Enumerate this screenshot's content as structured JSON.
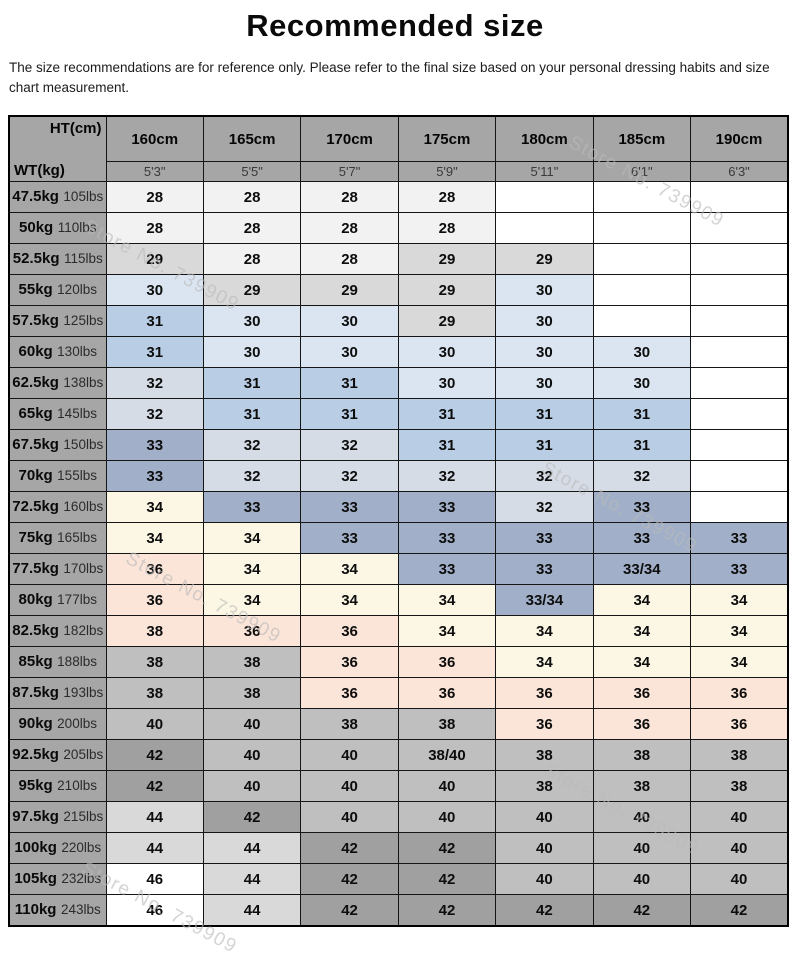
{
  "page": {
    "title": "Recommended size",
    "subtitle": "The size recommendations are for reference only. Please refer to the final size based on your personal dressing habits and size chart measurement."
  },
  "watermark": {
    "text": "Store No. 739909"
  },
  "table": {
    "corner": {
      "top": "HT(cm)",
      "bottom": "WT(kg)"
    },
    "columns": [
      {
        "cm": "160cm",
        "ft": "5'3\""
      },
      {
        "cm": "165cm",
        "ft": "5'5\""
      },
      {
        "cm": "170cm",
        "ft": "5'7\""
      },
      {
        "cm": "175cm",
        "ft": "5'9\""
      },
      {
        "cm": "180cm",
        "ft": "5'11\""
      },
      {
        "cm": "185cm",
        "ft": "6'1\""
      },
      {
        "cm": "190cm",
        "ft": "6'3\""
      }
    ],
    "colors": {
      "w": "#ffffff",
      "g0": "#f2f2f2",
      "g1": "#d9d9d9",
      "b0": "#dbe5f1",
      "b1": "#b9cde5",
      "gb": "#d6dce6",
      "b2": "#a1b0c8",
      "cr": "#fbf7e4",
      "pk": "#fbe5d9",
      "g2": "#bfbfbf",
      "g3": "#a0a0a0",
      "header": "#a6a6a6"
    },
    "rows": [
      {
        "kg": "47.5kg",
        "lbs": "105lbs",
        "cells": [
          {
            "v": "28",
            "c": "g0"
          },
          {
            "v": "28",
            "c": "g0"
          },
          {
            "v": "28",
            "c": "g0"
          },
          {
            "v": "28",
            "c": "g0"
          },
          {
            "v": "",
            "c": "w"
          },
          {
            "v": "",
            "c": "w"
          },
          {
            "v": "",
            "c": "w"
          }
        ]
      },
      {
        "kg": "50kg",
        "lbs": "110lbs",
        "cells": [
          {
            "v": "28",
            "c": "g0"
          },
          {
            "v": "28",
            "c": "g0"
          },
          {
            "v": "28",
            "c": "g0"
          },
          {
            "v": "28",
            "c": "g0"
          },
          {
            "v": "",
            "c": "w"
          },
          {
            "v": "",
            "c": "w"
          },
          {
            "v": "",
            "c": "w"
          }
        ]
      },
      {
        "kg": "52.5kg",
        "lbs": "115lbs",
        "cells": [
          {
            "v": "29",
            "c": "g1"
          },
          {
            "v": "28",
            "c": "g0"
          },
          {
            "v": "28",
            "c": "g0"
          },
          {
            "v": "29",
            "c": "g1"
          },
          {
            "v": "29",
            "c": "g1"
          },
          {
            "v": "",
            "c": "w"
          },
          {
            "v": "",
            "c": "w"
          }
        ]
      },
      {
        "kg": "55kg",
        "lbs": "120lbs",
        "cells": [
          {
            "v": "30",
            "c": "b0"
          },
          {
            "v": "29",
            "c": "g1"
          },
          {
            "v": "29",
            "c": "g1"
          },
          {
            "v": "29",
            "c": "g1"
          },
          {
            "v": "30",
            "c": "b0"
          },
          {
            "v": "",
            "c": "w"
          },
          {
            "v": "",
            "c": "w"
          }
        ]
      },
      {
        "kg": "57.5kg",
        "lbs": "125lbs",
        "cells": [
          {
            "v": "31",
            "c": "b1"
          },
          {
            "v": "30",
            "c": "b0"
          },
          {
            "v": "30",
            "c": "b0"
          },
          {
            "v": "29",
            "c": "g1"
          },
          {
            "v": "30",
            "c": "b0"
          },
          {
            "v": "",
            "c": "w"
          },
          {
            "v": "",
            "c": "w"
          }
        ]
      },
      {
        "kg": "60kg",
        "lbs": "130lbs",
        "cells": [
          {
            "v": "31",
            "c": "b1"
          },
          {
            "v": "30",
            "c": "b0"
          },
          {
            "v": "30",
            "c": "b0"
          },
          {
            "v": "30",
            "c": "b0"
          },
          {
            "v": "30",
            "c": "b0"
          },
          {
            "v": "30",
            "c": "b0"
          },
          {
            "v": "",
            "c": "w"
          }
        ]
      },
      {
        "kg": "62.5kg",
        "lbs": "138lbs",
        "cells": [
          {
            "v": "32",
            "c": "gb"
          },
          {
            "v": "31",
            "c": "b1"
          },
          {
            "v": "31",
            "c": "b1"
          },
          {
            "v": "30",
            "c": "b0"
          },
          {
            "v": "30",
            "c": "b0"
          },
          {
            "v": "30",
            "c": "b0"
          },
          {
            "v": "",
            "c": "w"
          }
        ]
      },
      {
        "kg": "65kg",
        "lbs": "145lbs",
        "cells": [
          {
            "v": "32",
            "c": "gb"
          },
          {
            "v": "31",
            "c": "b1"
          },
          {
            "v": "31",
            "c": "b1"
          },
          {
            "v": "31",
            "c": "b1"
          },
          {
            "v": "31",
            "c": "b1"
          },
          {
            "v": "31",
            "c": "b1"
          },
          {
            "v": "",
            "c": "w"
          }
        ]
      },
      {
        "kg": "67.5kg",
        "lbs": "150lbs",
        "cells": [
          {
            "v": "33",
            "c": "b2"
          },
          {
            "v": "32",
            "c": "gb"
          },
          {
            "v": "32",
            "c": "gb"
          },
          {
            "v": "31",
            "c": "b1"
          },
          {
            "v": "31",
            "c": "b1"
          },
          {
            "v": "31",
            "c": "b1"
          },
          {
            "v": "",
            "c": "w"
          }
        ]
      },
      {
        "kg": "70kg",
        "lbs": "155lbs",
        "cells": [
          {
            "v": "33",
            "c": "b2"
          },
          {
            "v": "32",
            "c": "gb"
          },
          {
            "v": "32",
            "c": "gb"
          },
          {
            "v": "32",
            "c": "gb"
          },
          {
            "v": "32",
            "c": "gb"
          },
          {
            "v": "32",
            "c": "gb"
          },
          {
            "v": "",
            "c": "w"
          }
        ]
      },
      {
        "kg": "72.5kg",
        "lbs": "160lbs",
        "cells": [
          {
            "v": "34",
            "c": "cr"
          },
          {
            "v": "33",
            "c": "b2"
          },
          {
            "v": "33",
            "c": "b2"
          },
          {
            "v": "33",
            "c": "b2"
          },
          {
            "v": "32",
            "c": "gb"
          },
          {
            "v": "33",
            "c": "b2"
          },
          {
            "v": "",
            "c": "w"
          }
        ]
      },
      {
        "kg": "75kg",
        "lbs": "165lbs",
        "cells": [
          {
            "v": "34",
            "c": "cr"
          },
          {
            "v": "34",
            "c": "cr"
          },
          {
            "v": "33",
            "c": "b2"
          },
          {
            "v": "33",
            "c": "b2"
          },
          {
            "v": "33",
            "c": "b2"
          },
          {
            "v": "33",
            "c": "b2"
          },
          {
            "v": "33",
            "c": "b2"
          }
        ]
      },
      {
        "kg": "77.5kg",
        "lbs": "170lbs",
        "cells": [
          {
            "v": "36",
            "c": "pk"
          },
          {
            "v": "34",
            "c": "cr"
          },
          {
            "v": "34",
            "c": "cr"
          },
          {
            "v": "33",
            "c": "b2"
          },
          {
            "v": "33",
            "c": "b2"
          },
          {
            "v": "33/34",
            "c": "b2"
          },
          {
            "v": "33",
            "c": "b2"
          }
        ]
      },
      {
        "kg": "80kg",
        "lbs": "177lbs",
        "cells": [
          {
            "v": "36",
            "c": "pk"
          },
          {
            "v": "34",
            "c": "cr"
          },
          {
            "v": "34",
            "c": "cr"
          },
          {
            "v": "34",
            "c": "cr"
          },
          {
            "v": "33/34",
            "c": "b2"
          },
          {
            "v": "34",
            "c": "cr"
          },
          {
            "v": "34",
            "c": "cr"
          }
        ]
      },
      {
        "kg": "82.5kg",
        "lbs": "182lbs",
        "cells": [
          {
            "v": "38",
            "c": "pk"
          },
          {
            "v": "36",
            "c": "pk"
          },
          {
            "v": "36",
            "c": "pk"
          },
          {
            "v": "34",
            "c": "cr"
          },
          {
            "v": "34",
            "c": "cr"
          },
          {
            "v": "34",
            "c": "cr"
          },
          {
            "v": "34",
            "c": "cr"
          }
        ]
      },
      {
        "kg": "85kg",
        "lbs": "188lbs",
        "cells": [
          {
            "v": "38",
            "c": "g2"
          },
          {
            "v": "38",
            "c": "g2"
          },
          {
            "v": "36",
            "c": "pk"
          },
          {
            "v": "36",
            "c": "pk"
          },
          {
            "v": "34",
            "c": "cr"
          },
          {
            "v": "34",
            "c": "cr"
          },
          {
            "v": "34",
            "c": "cr"
          }
        ]
      },
      {
        "kg": "87.5kg",
        "lbs": "193lbs",
        "cells": [
          {
            "v": "38",
            "c": "g2"
          },
          {
            "v": "38",
            "c": "g2"
          },
          {
            "v": "36",
            "c": "pk"
          },
          {
            "v": "36",
            "c": "pk"
          },
          {
            "v": "36",
            "c": "pk"
          },
          {
            "v": "36",
            "c": "pk"
          },
          {
            "v": "36",
            "c": "pk"
          }
        ]
      },
      {
        "kg": "90kg",
        "lbs": "200lbs",
        "cells": [
          {
            "v": "40",
            "c": "g2"
          },
          {
            "v": "40",
            "c": "g2"
          },
          {
            "v": "38",
            "c": "g2"
          },
          {
            "v": "38",
            "c": "g2"
          },
          {
            "v": "36",
            "c": "pk"
          },
          {
            "v": "36",
            "c": "pk"
          },
          {
            "v": "36",
            "c": "pk"
          }
        ]
      },
      {
        "kg": "92.5kg",
        "lbs": "205lbs",
        "cells": [
          {
            "v": "42",
            "c": "g3"
          },
          {
            "v": "40",
            "c": "g2"
          },
          {
            "v": "40",
            "c": "g2"
          },
          {
            "v": "38/40",
            "c": "g2"
          },
          {
            "v": "38",
            "c": "g2"
          },
          {
            "v": "38",
            "c": "g2"
          },
          {
            "v": "38",
            "c": "g2"
          }
        ]
      },
      {
        "kg": "95kg",
        "lbs": "210lbs",
        "cells": [
          {
            "v": "42",
            "c": "g3"
          },
          {
            "v": "40",
            "c": "g2"
          },
          {
            "v": "40",
            "c": "g2"
          },
          {
            "v": "40",
            "c": "g2"
          },
          {
            "v": "38",
            "c": "g2"
          },
          {
            "v": "38",
            "c": "g2"
          },
          {
            "v": "38",
            "c": "g2"
          }
        ]
      },
      {
        "kg": "97.5kg",
        "lbs": "215lbs",
        "cells": [
          {
            "v": "44",
            "c": "g1"
          },
          {
            "v": "42",
            "c": "g3"
          },
          {
            "v": "40",
            "c": "g2"
          },
          {
            "v": "40",
            "c": "g2"
          },
          {
            "v": "40",
            "c": "g2"
          },
          {
            "v": "40",
            "c": "g2"
          },
          {
            "v": "40",
            "c": "g2"
          }
        ]
      },
      {
        "kg": "100kg",
        "lbs": "220lbs",
        "cells": [
          {
            "v": "44",
            "c": "g1"
          },
          {
            "v": "44",
            "c": "g1"
          },
          {
            "v": "42",
            "c": "g3"
          },
          {
            "v": "42",
            "c": "g3"
          },
          {
            "v": "40",
            "c": "g2"
          },
          {
            "v": "40",
            "c": "g2"
          },
          {
            "v": "40",
            "c": "g2"
          }
        ]
      },
      {
        "kg": "105kg",
        "lbs": "232lbs",
        "cells": [
          {
            "v": "46",
            "c": "w"
          },
          {
            "v": "44",
            "c": "g1"
          },
          {
            "v": "42",
            "c": "g3"
          },
          {
            "v": "42",
            "c": "g3"
          },
          {
            "v": "40",
            "c": "g2"
          },
          {
            "v": "40",
            "c": "g2"
          },
          {
            "v": "40",
            "c": "g2"
          }
        ]
      },
      {
        "kg": "110kg",
        "lbs": "243lbs",
        "cells": [
          {
            "v": "46",
            "c": "w"
          },
          {
            "v": "44",
            "c": "g1"
          },
          {
            "v": "42",
            "c": "g3"
          },
          {
            "v": "42",
            "c": "g3"
          },
          {
            "v": "42",
            "c": "g3"
          },
          {
            "v": "42",
            "c": "g3"
          },
          {
            "v": "42",
            "c": "g3"
          }
        ]
      }
    ]
  }
}
